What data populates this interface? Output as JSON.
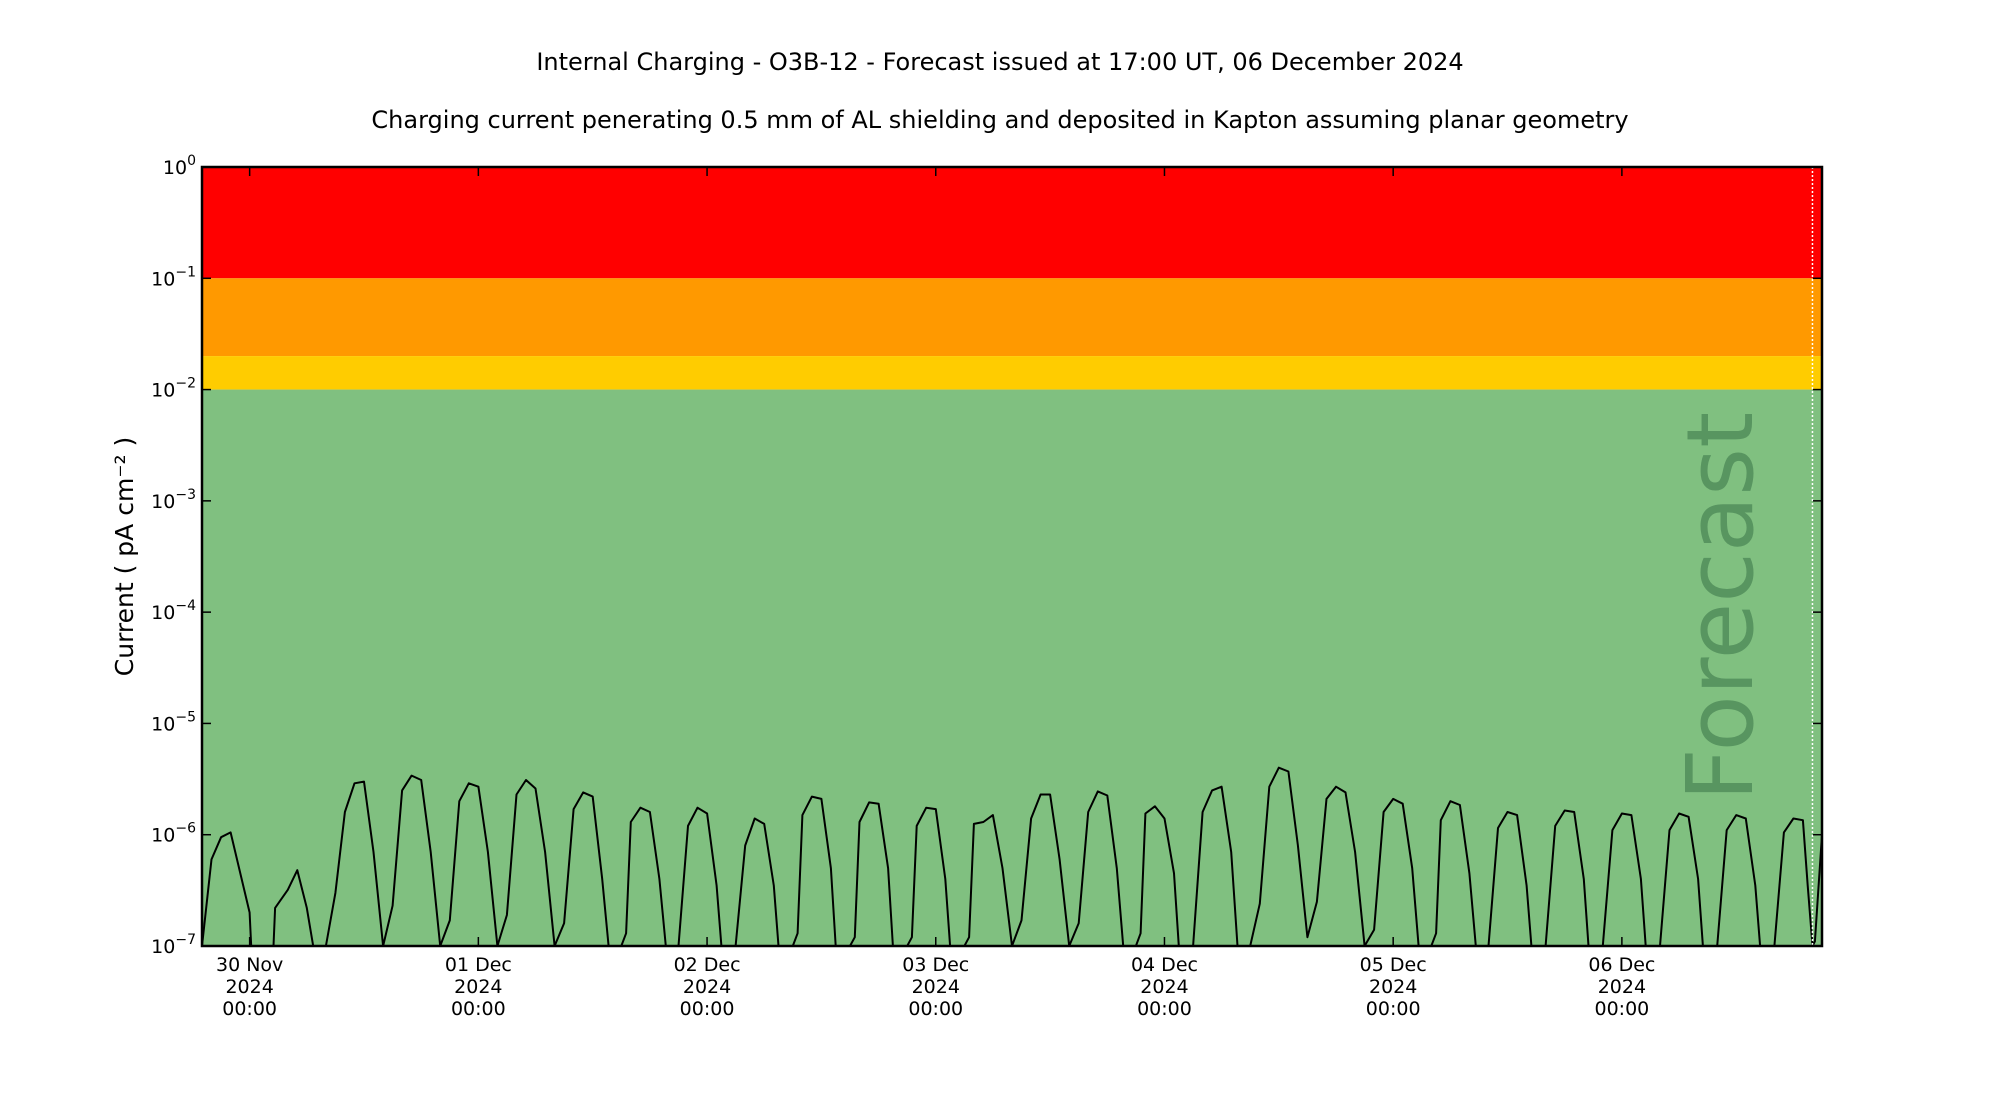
{
  "chart_data": {
    "type": "line",
    "title": "Internal Charging - O3B-12 - Forecast issued at 17:00 UT, 06 December 2024",
    "subtitle": "Charging current penerating 0.5 mm of AL shielding and deposited in Kapton assuming planar geometry",
    "ylabel": "Current ( pA cm⁻² )",
    "yscale": "log",
    "ylim": [
      1e-07,
      1
    ],
    "yticks": [
      {
        "exp": "0",
        "value": 1
      },
      {
        "exp": "−1",
        "value": 0.1
      },
      {
        "exp": "−2",
        "value": 0.01
      },
      {
        "exp": "−3",
        "value": 0.001
      },
      {
        "exp": "−4",
        "value": 0.0001
      },
      {
        "exp": "−5",
        "value": 1e-05
      },
      {
        "exp": "−6",
        "value": 1e-06
      },
      {
        "exp": "−7",
        "value": 1e-07
      }
    ],
    "xlim": [
      "2024-11-29T19:00",
      "2024-12-06T21:00"
    ],
    "xticks": [
      {
        "at": "2024-11-30T00:00",
        "lines": [
          "30 Nov",
          "2024",
          "00:00"
        ]
      },
      {
        "at": "2024-12-01T00:00",
        "lines": [
          "01 Dec",
          "2024",
          "00:00"
        ]
      },
      {
        "at": "2024-12-02T00:00",
        "lines": [
          "02 Dec",
          "2024",
          "00:00"
        ]
      },
      {
        "at": "2024-12-03T00:00",
        "lines": [
          "03 Dec",
          "2024",
          "00:00"
        ]
      },
      {
        "at": "2024-12-04T00:00",
        "lines": [
          "04 Dec",
          "2024",
          "00:00"
        ]
      },
      {
        "at": "2024-12-05T00:00",
        "lines": [
          "05 Dec",
          "2024",
          "00:00"
        ]
      },
      {
        "at": "2024-12-06T00:00",
        "lines": [
          "06 Dec",
          "2024",
          "00:00"
        ]
      }
    ],
    "bands": [
      {
        "from": 0.1,
        "to": 1,
        "color": "#ff0000"
      },
      {
        "from": 0.02,
        "to": 0.1,
        "color": "#ff9900"
      },
      {
        "from": 0.01,
        "to": 0.02,
        "color": "#ffcc00"
      },
      {
        "from": 1e-07,
        "to": 0.01,
        "color": "#80c080"
      }
    ],
    "forecast_start": "2024-12-06T20:00",
    "forecast_label": "Forecast",
    "line_color": "#000000",
    "series": [
      {
        "points": [
          [
            "2024-11-29T19:00",
            1e-07
          ],
          [
            "2024-11-29T20:00",
            6e-07
          ],
          [
            "2024-11-29T21:00",
            9.5e-07
          ],
          [
            "2024-11-29T22:00",
            1.05e-06
          ],
          [
            "2024-11-30T00:00",
            2e-07
          ],
          [
            "2024-11-30T00:10",
            1e-07
          ],
          [
            "2024-11-30T02:30",
            1e-07
          ],
          [
            "2024-11-30T02:40",
            2.2e-07
          ],
          [
            "2024-11-30T04:00",
            3.2e-07
          ],
          [
            "2024-11-30T05:00",
            4.8e-07
          ],
          [
            "2024-11-30T06:00",
            2.2e-07
          ],
          [
            "2024-11-30T06:40",
            1e-07
          ],
          [
            "2024-11-30T08:00",
            1e-07
          ],
          [
            "2024-11-30T09:00",
            3e-07
          ],
          [
            "2024-11-30T10:00",
            1.6e-06
          ],
          [
            "2024-11-30T11:00",
            2.9e-06
          ],
          [
            "2024-11-30T12:00",
            3e-06
          ],
          [
            "2024-11-30T13:00",
            7e-07
          ],
          [
            "2024-11-30T14:00",
            1e-07
          ],
          [
            "2024-11-30T15:00",
            2.3e-07
          ],
          [
            "2024-11-30T16:00",
            2.5e-06
          ],
          [
            "2024-11-30T17:00",
            3.4e-06
          ],
          [
            "2024-11-30T18:00",
            3.1e-06
          ],
          [
            "2024-11-30T19:00",
            7e-07
          ],
          [
            "2024-11-30T20:00",
            1e-07
          ],
          [
            "2024-11-30T21:00",
            1.7e-07
          ],
          [
            "2024-11-30T22:00",
            2e-06
          ],
          [
            "2024-11-30T23:00",
            2.9e-06
          ],
          [
            "2024-12-01T00:00",
            2.7e-06
          ],
          [
            "2024-12-01T01:00",
            7e-07
          ],
          [
            "2024-12-01T02:00",
            1e-07
          ],
          [
            "2024-12-01T03:00",
            1.9e-07
          ],
          [
            "2024-12-01T04:00",
            2.3e-06
          ],
          [
            "2024-12-01T05:00",
            3.1e-06
          ],
          [
            "2024-12-01T06:00",
            2.6e-06
          ],
          [
            "2024-12-01T07:00",
            7e-07
          ],
          [
            "2024-12-01T08:00",
            1e-07
          ],
          [
            "2024-12-01T09:00",
            1.6e-07
          ],
          [
            "2024-12-01T10:00",
            1.7e-06
          ],
          [
            "2024-12-01T11:00",
            2.4e-06
          ],
          [
            "2024-12-01T12:00",
            2.2e-06
          ],
          [
            "2024-12-01T13:00",
            4e-07
          ],
          [
            "2024-12-01T13:40",
            1e-07
          ],
          [
            "2024-12-01T15:00",
            1e-07
          ],
          [
            "2024-12-01T15:30",
            1.3e-07
          ],
          [
            "2024-12-01T16:00",
            1.3e-06
          ],
          [
            "2024-12-01T17:00",
            1.75e-06
          ],
          [
            "2024-12-01T18:00",
            1.6e-06
          ],
          [
            "2024-12-01T19:00",
            4e-07
          ],
          [
            "2024-12-01T19:40",
            1e-07
          ],
          [
            "2024-12-01T21:00",
            1e-07
          ],
          [
            "2024-12-01T22:00",
            1.2e-06
          ],
          [
            "2024-12-01T23:00",
            1.75e-06
          ],
          [
            "2024-12-02T00:00",
            1.55e-06
          ],
          [
            "2024-12-02T01:00",
            3.5e-07
          ],
          [
            "2024-12-02T01:30",
            1e-07
          ],
          [
            "2024-12-02T03:00",
            1e-07
          ],
          [
            "2024-12-02T04:00",
            8e-07
          ],
          [
            "2024-12-02T05:00",
            1.4e-06
          ],
          [
            "2024-12-02T06:00",
            1.25e-06
          ],
          [
            "2024-12-02T07:00",
            3.5e-07
          ],
          [
            "2024-12-02T07:30",
            1e-07
          ],
          [
            "2024-12-02T09:00",
            1e-07
          ],
          [
            "2024-12-02T09:30",
            1.3e-07
          ],
          [
            "2024-12-02T10:00",
            1.5e-06
          ],
          [
            "2024-12-02T11:00",
            2.2e-06
          ],
          [
            "2024-12-02T12:00",
            2.1e-06
          ],
          [
            "2024-12-02T13:00",
            5e-07
          ],
          [
            "2024-12-02T13:30",
            1e-07
          ],
          [
            "2024-12-02T15:00",
            1e-07
          ],
          [
            "2024-12-02T15:30",
            1.2e-07
          ],
          [
            "2024-12-02T16:00",
            1.3e-06
          ],
          [
            "2024-12-02T17:00",
            1.95e-06
          ],
          [
            "2024-12-02T18:00",
            1.9e-06
          ],
          [
            "2024-12-02T19:00",
            5e-07
          ],
          [
            "2024-12-02T19:30",
            1e-07
          ],
          [
            "2024-12-02T21:00",
            1e-07
          ],
          [
            "2024-12-02T21:30",
            1.2e-07
          ],
          [
            "2024-12-02T22:00",
            1.2e-06
          ],
          [
            "2024-12-02T23:00",
            1.75e-06
          ],
          [
            "2024-12-03T00:00",
            1.7e-06
          ],
          [
            "2024-12-03T01:00",
            4e-07
          ],
          [
            "2024-12-03T01:30",
            1e-07
          ],
          [
            "2024-12-03T03:00",
            1e-07
          ],
          [
            "2024-12-03T03:30",
            1.2e-07
          ],
          [
            "2024-12-03T04:00",
            1.25e-06
          ],
          [
            "2024-12-03T05:00",
            1.3e-06
          ],
          [
            "2024-12-03T06:00",
            1.5e-06
          ],
          [
            "2024-12-03T07:00",
            5e-07
          ],
          [
            "2024-12-03T08:00",
            1e-07
          ],
          [
            "2024-12-03T09:00",
            1.7e-07
          ],
          [
            "2024-12-03T10:00",
            1.4e-06
          ],
          [
            "2024-12-03T11:00",
            2.3e-06
          ],
          [
            "2024-12-03T12:00",
            2.3e-06
          ],
          [
            "2024-12-03T13:00",
            6e-07
          ],
          [
            "2024-12-03T14:00",
            1e-07
          ],
          [
            "2024-12-03T15:00",
            1.6e-07
          ],
          [
            "2024-12-03T16:00",
            1.6e-06
          ],
          [
            "2024-12-03T17:00",
            2.45e-06
          ],
          [
            "2024-12-03T18:00",
            2.25e-06
          ],
          [
            "2024-12-03T19:00",
            5e-07
          ],
          [
            "2024-12-03T19:40",
            1e-07
          ],
          [
            "2024-12-03T21:00",
            1e-07
          ],
          [
            "2024-12-03T21:30",
            1.3e-07
          ],
          [
            "2024-12-03T22:00",
            1.55e-06
          ],
          [
            "2024-12-03T23:00",
            1.8e-06
          ],
          [
            "2024-12-04T00:00",
            1.4e-06
          ],
          [
            "2024-12-04T01:00",
            4.5e-07
          ],
          [
            "2024-12-04T01:30",
            1e-07
          ],
          [
            "2024-12-04T03:00",
            1e-07
          ],
          [
            "2024-12-04T04:00",
            1.6e-06
          ],
          [
            "2024-12-04T05:00",
            2.5e-06
          ],
          [
            "2024-12-04T06:00",
            2.7e-06
          ],
          [
            "2024-12-04T07:00",
            7e-07
          ],
          [
            "2024-12-04T07:40",
            1e-07
          ],
          [
            "2024-12-04T09:00",
            1e-07
          ],
          [
            "2024-12-04T10:00",
            2.4e-07
          ],
          [
            "2024-12-04T11:00",
            2.7e-06
          ],
          [
            "2024-12-04T12:00",
            4e-06
          ],
          [
            "2024-12-04T13:00",
            3.7e-06
          ],
          [
            "2024-12-04T14:00",
            8e-07
          ],
          [
            "2024-12-04T15:00",
            1.2e-07
          ],
          [
            "2024-12-04T16:00",
            2.5e-07
          ],
          [
            "2024-12-04T17:00",
            2.1e-06
          ],
          [
            "2024-12-04T18:00",
            2.7e-06
          ],
          [
            "2024-12-04T19:00",
            2.4e-06
          ],
          [
            "2024-12-04T20:00",
            7e-07
          ],
          [
            "2024-12-04T21:00",
            1e-07
          ],
          [
            "2024-12-04T22:00",
            1.4e-07
          ],
          [
            "2024-12-04T23:00",
            1.6e-06
          ],
          [
            "2024-12-05T00:00",
            2.1e-06
          ],
          [
            "2024-12-05T01:00",
            1.9e-06
          ],
          [
            "2024-12-05T02:00",
            5e-07
          ],
          [
            "2024-12-05T02:40",
            1e-07
          ],
          [
            "2024-12-05T04:00",
            1e-07
          ],
          [
            "2024-12-05T04:30",
            1.3e-07
          ],
          [
            "2024-12-05T05:00",
            1.35e-06
          ],
          [
            "2024-12-05T06:00",
            2e-06
          ],
          [
            "2024-12-05T07:00",
            1.85e-06
          ],
          [
            "2024-12-05T08:00",
            4.5e-07
          ],
          [
            "2024-12-05T08:40",
            1e-07
          ],
          [
            "2024-12-05T10:00",
            1e-07
          ],
          [
            "2024-12-05T11:00",
            1.15e-06
          ],
          [
            "2024-12-05T12:00",
            1.6e-06
          ],
          [
            "2024-12-05T13:00",
            1.5e-06
          ],
          [
            "2024-12-05T14:00",
            3.5e-07
          ],
          [
            "2024-12-05T14:30",
            1e-07
          ],
          [
            "2024-12-05T16:00",
            1e-07
          ],
          [
            "2024-12-05T17:00",
            1.2e-06
          ],
          [
            "2024-12-05T18:00",
            1.65e-06
          ],
          [
            "2024-12-05T19:00",
            1.6e-06
          ],
          [
            "2024-12-05T20:00",
            4e-07
          ],
          [
            "2024-12-05T20:30",
            1e-07
          ],
          [
            "2024-12-05T22:00",
            1e-07
          ],
          [
            "2024-12-05T23:00",
            1.1e-06
          ],
          [
            "2024-12-06T00:00",
            1.55e-06
          ],
          [
            "2024-12-06T01:00",
            1.5e-06
          ],
          [
            "2024-12-06T02:00",
            4e-07
          ],
          [
            "2024-12-06T02:30",
            1e-07
          ],
          [
            "2024-12-06T04:00",
            1e-07
          ],
          [
            "2024-12-06T05:00",
            1.1e-06
          ],
          [
            "2024-12-06T06:00",
            1.55e-06
          ],
          [
            "2024-12-06T07:00",
            1.45e-06
          ],
          [
            "2024-12-06T08:00",
            4e-07
          ],
          [
            "2024-12-06T08:30",
            1e-07
          ],
          [
            "2024-12-06T10:00",
            1e-07
          ],
          [
            "2024-12-06T11:00",
            1.1e-06
          ],
          [
            "2024-12-06T12:00",
            1.5e-06
          ],
          [
            "2024-12-06T13:00",
            1.4e-06
          ],
          [
            "2024-12-06T14:00",
            3.5e-07
          ],
          [
            "2024-12-06T14:30",
            1e-07
          ],
          [
            "2024-12-06T16:00",
            1e-07
          ],
          [
            "2024-12-06T17:00",
            1.05e-06
          ],
          [
            "2024-12-06T18:00",
            1.4e-06
          ],
          [
            "2024-12-06T19:00",
            1.35e-06
          ],
          [
            "2024-12-06T19:30",
            3.5e-07
          ],
          [
            "2024-12-06T20:00",
            1e-07
          ],
          [
            "2024-12-06T20:15",
            1.1e-07
          ],
          [
            "2024-12-06T21:00",
            1e-06
          ]
        ]
      }
    ]
  }
}
